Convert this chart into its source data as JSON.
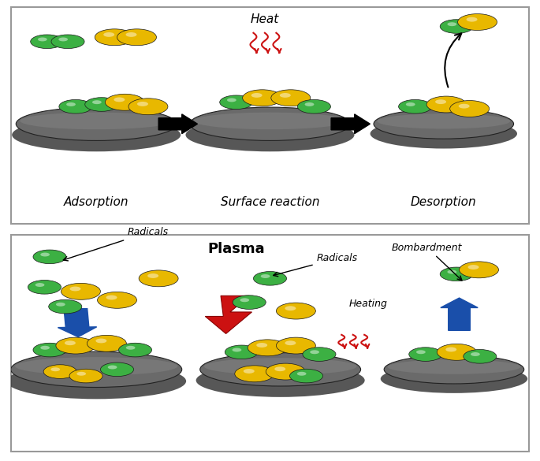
{
  "colors": {
    "green": "#3CB043",
    "yellow": "#E8B800",
    "ellipse_main": "#6a6a6a",
    "ellipse_shadow": "#3a3a3a",
    "ellipse_highlight": "#909090",
    "arrow_black": "#111111",
    "arrow_blue": "#1a4faa",
    "plasma_red": "#CC1111",
    "heat_red": "#CC1111",
    "background": "#ffffff",
    "border": "#999999"
  },
  "top_steps": [
    "Adsorption",
    "Surface reaction",
    "Desorption"
  ],
  "bot_annotation_labels": [
    "Radicals",
    "Radicals",
    "Heating",
    "Bombardment",
    "Plasma"
  ]
}
